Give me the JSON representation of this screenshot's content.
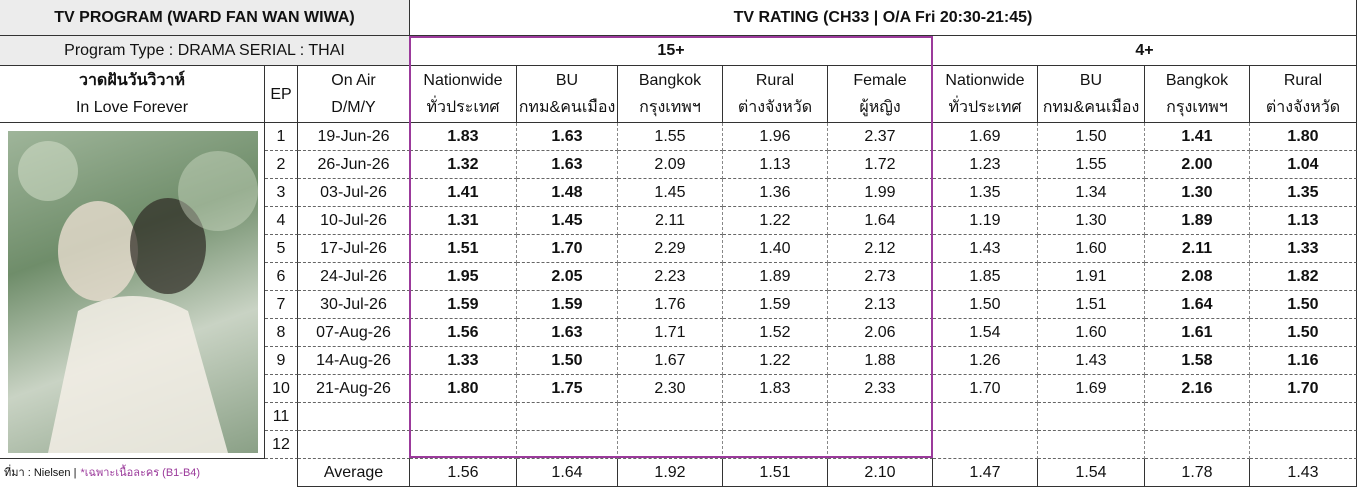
{
  "header": {
    "title": "TV PROGRAM (WARD FAN WAN WIWA)",
    "rating_title": "TV RATING (CH33 | O/A Fri 20:30-21:45)",
    "program_type": "Program Type : DRAMA SERIAL : THAI",
    "show_name_th": "วาดฝันวันวิวาห์",
    "show_name_en": "In Love Forever",
    "ep_label": "EP",
    "on_air_label": "On Air",
    "date_format": "D/M/Y"
  },
  "groups": [
    {
      "label": "15+",
      "columns": [
        {
          "name": "Nationwide",
          "name_th": "ทั่วประเทศ",
          "bold": true
        },
        {
          "name": "BU",
          "name_th": "กทม&คนเมือง",
          "bold": true
        },
        {
          "name": "Bangkok",
          "name_th": "กรุงเทพฯ",
          "bold": false
        },
        {
          "name": "Rural",
          "name_th": "ต่างจังหวัด",
          "bold": false
        },
        {
          "name": "Female",
          "name_th": "ผู้หญิง",
          "bold": false
        }
      ]
    },
    {
      "label": "4+",
      "columns": [
        {
          "name": "Nationwide",
          "name_th": "ทั่วประเทศ",
          "bold": false
        },
        {
          "name": "BU",
          "name_th": "กทม&คนเมือง",
          "bold": false
        },
        {
          "name": "Bangkok",
          "name_th": "กรุงเทพฯ",
          "bold": true
        },
        {
          "name": "Rural",
          "name_th": "ต่างจังหวัด",
          "bold": true
        }
      ]
    }
  ],
  "rows": [
    {
      "ep": 1,
      "date": "19-Jun-26",
      "values": [
        "1.83",
        "1.63",
        "1.55",
        "1.96",
        "2.37",
        "1.69",
        "1.50",
        "1.41",
        "1.80"
      ]
    },
    {
      "ep": 2,
      "date": "26-Jun-26",
      "values": [
        "1.32",
        "1.63",
        "2.09",
        "1.13",
        "1.72",
        "1.23",
        "1.55",
        "2.00",
        "1.04"
      ]
    },
    {
      "ep": 3,
      "date": "03-Jul-26",
      "values": [
        "1.41",
        "1.48",
        "1.45",
        "1.36",
        "1.99",
        "1.35",
        "1.34",
        "1.30",
        "1.35"
      ]
    },
    {
      "ep": 4,
      "date": "10-Jul-26",
      "values": [
        "1.31",
        "1.45",
        "2.11",
        "1.22",
        "1.64",
        "1.19",
        "1.30",
        "1.89",
        "1.13"
      ]
    },
    {
      "ep": 5,
      "date": "17-Jul-26",
      "values": [
        "1.51",
        "1.70",
        "2.29",
        "1.40",
        "2.12",
        "1.43",
        "1.60",
        "2.11",
        "1.33"
      ]
    },
    {
      "ep": 6,
      "date": "24-Jul-26",
      "values": [
        "1.95",
        "2.05",
        "2.23",
        "1.89",
        "2.73",
        "1.85",
        "1.91",
        "2.08",
        "1.82"
      ]
    },
    {
      "ep": 7,
      "date": "30-Jul-26",
      "values": [
        "1.59",
        "1.59",
        "1.76",
        "1.59",
        "2.13",
        "1.50",
        "1.51",
        "1.64",
        "1.50"
      ]
    },
    {
      "ep": 8,
      "date": "07-Aug-26",
      "values": [
        "1.56",
        "1.63",
        "1.71",
        "1.52",
        "2.06",
        "1.54",
        "1.60",
        "1.61",
        "1.50"
      ]
    },
    {
      "ep": 9,
      "date": "14-Aug-26",
      "values": [
        "1.33",
        "1.50",
        "1.67",
        "1.22",
        "1.88",
        "1.26",
        "1.43",
        "1.58",
        "1.16"
      ]
    },
    {
      "ep": 10,
      "date": "21-Aug-26",
      "values": [
        "1.80",
        "1.75",
        "2.30",
        "1.83",
        "2.33",
        "1.70",
        "1.69",
        "2.16",
        "1.70"
      ]
    },
    {
      "ep": 11
    },
    {
      "ep": 12
    }
  ],
  "footer": {
    "source": "ที่มา : Nielsen |",
    "note": "*เฉพาะเนื้อละคร (B1-B4)",
    "average_label": "Average",
    "averages": [
      "1.56",
      "1.64",
      "1.92",
      "1.51",
      "2.10",
      "1.47",
      "1.54",
      "1.78",
      "1.43"
    ]
  }
}
